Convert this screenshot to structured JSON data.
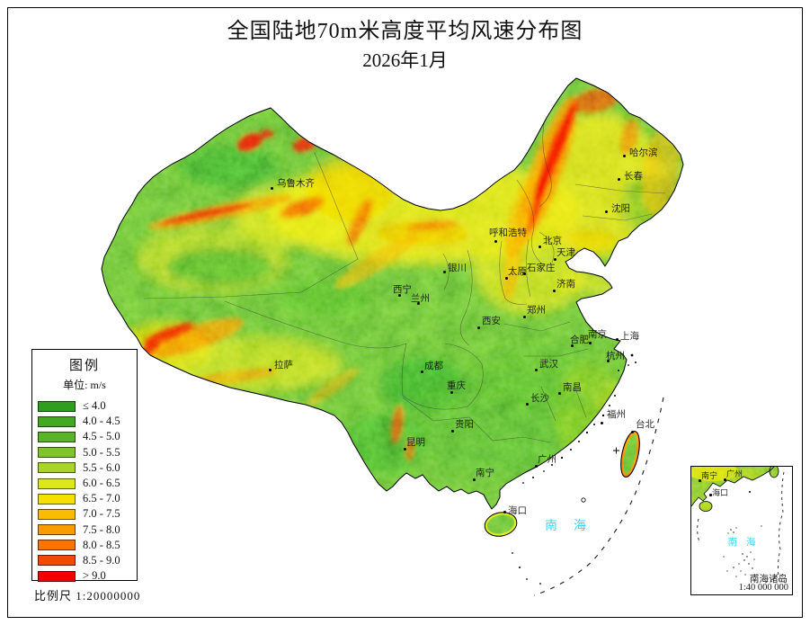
{
  "title": "全国陆地70m米高度平均风速分布图",
  "subtitle": "2026年1月",
  "scale_text": "比例尺  1:20000000",
  "colors": {
    "sea_label": "#3ed6f0",
    "land_base": "#58b428"
  },
  "legend": {
    "title": "图例",
    "unit_label": "单位: m/s",
    "items": [
      {
        "label": "≤ 4.0",
        "color": "#2f9e1e"
      },
      {
        "label": "4.0 - 4.5",
        "color": "#45a822"
      },
      {
        "label": "4.5 - 5.0",
        "color": "#5bb427"
      },
      {
        "label": "5.0 - 5.5",
        "color": "#80c42c"
      },
      {
        "label": "5.5 - 6.0",
        "color": "#aad428"
      },
      {
        "label": "6.0 - 6.5",
        "color": "#dce81a"
      },
      {
        "label": "6.5 - 7.0",
        "color": "#f6e000"
      },
      {
        "label": "7.0 - 7.5",
        "color": "#f9bc00"
      },
      {
        "label": "7.5 - 8.0",
        "color": "#f99c00"
      },
      {
        "label": "8.0 - 8.5",
        "color": "#f97400"
      },
      {
        "label": "8.5 - 9.0",
        "color": "#f54800"
      },
      {
        "label": "> 9.0",
        "color": "#f20000"
      }
    ]
  },
  "map": {
    "sea_label": "南海",
    "cities": [
      {
        "name": "哈尔滨",
        "dot": [
          694,
          173
        ],
        "label": [
          700,
          165
        ]
      },
      {
        "name": "长春",
        "dot": [
          688,
          199
        ],
        "label": [
          694,
          191
        ]
      },
      {
        "name": "沈阳",
        "dot": [
          674,
          235
        ],
        "label": [
          680,
          227
        ]
      },
      {
        "name": "乌鲁木齐",
        "dot": [
          302,
          209
        ],
        "label": [
          308,
          199
        ]
      },
      {
        "name": "呼和浩特",
        "dot": [
          551,
          268
        ],
        "label": [
          544,
          254
        ]
      },
      {
        "name": "北京",
        "dot": [
          600,
          274
        ],
        "label": [
          604,
          263
        ]
      },
      {
        "name": "天津",
        "dot": [
          617,
          288
        ],
        "label": [
          619,
          276
        ]
      },
      {
        "name": "银川",
        "dot": [
          494,
          302
        ],
        "label": [
          498,
          293
        ]
      },
      {
        "name": "太原",
        "dot": [
          563,
          309
        ],
        "label": [
          565,
          297
        ]
      },
      {
        "name": "石家庄",
        "dot": [
          583,
          304
        ],
        "label": [
          586,
          293
        ]
      },
      {
        "name": "济南",
        "dot": [
          616,
          323
        ],
        "label": [
          619,
          311
        ]
      },
      {
        "name": "郑州",
        "dot": [
          583,
          352
        ],
        "label": [
          586,
          340
        ]
      },
      {
        "name": "西宁",
        "dot": [
          444,
          328
        ],
        "label": [
          437,
          317
        ]
      },
      {
        "name": "兰州",
        "dot": [
          465,
          337
        ],
        "label": [
          457,
          327
        ]
      },
      {
        "name": "西安",
        "dot": [
          532,
          364
        ],
        "label": [
          536,
          352
        ]
      },
      {
        "name": "拉萨",
        "dot": [
          300,
          411
        ],
        "label": [
          305,
          401
        ]
      },
      {
        "name": "成都",
        "dot": [
          469,
          413
        ],
        "label": [
          472,
          402
        ]
      },
      {
        "name": "重庆",
        "dot": [
          502,
          436
        ],
        "label": [
          497,
          424
        ]
      },
      {
        "name": "武汉",
        "dot": [
          596,
          411
        ],
        "label": [
          600,
          400
        ]
      },
      {
        "name": "长沙",
        "dot": [
          586,
          449
        ],
        "label": [
          590,
          438
        ]
      },
      {
        "name": "南昌",
        "dot": [
          622,
          437
        ],
        "label": [
          626,
          426
        ]
      },
      {
        "name": "贵阳",
        "dot": [
          503,
          479
        ],
        "label": [
          506,
          467
        ]
      },
      {
        "name": "昆明",
        "dot": [
          450,
          499
        ],
        "label": [
          452,
          487
        ]
      },
      {
        "name": "南京",
        "dot": [
          656,
          381
        ],
        "label": [
          654,
          367
        ]
      },
      {
        "name": "合肥",
        "dot": [
          636,
          384
        ],
        "label": [
          634,
          373
        ]
      },
      {
        "name": "上海",
        "dot": [
          686,
          377
        ],
        "label": [
          690,
          369
        ]
      },
      {
        "name": "杭州",
        "dot": [
          676,
          401
        ],
        "label": [
          674,
          391
        ]
      },
      {
        "name": "福州",
        "dot": [
          669,
          470
        ],
        "label": [
          675,
          456
        ]
      },
      {
        "name": "台北",
        "dot": [
          703,
          480
        ],
        "label": [
          707,
          467
        ]
      },
      {
        "name": "广州",
        "dot": [
          596,
          518
        ],
        "label": [
          598,
          506
        ]
      },
      {
        "name": "南宁",
        "dot": [
          527,
          533
        ],
        "label": [
          529,
          521
        ]
      },
      {
        "name": "海口",
        "dot": [
          561,
          569
        ],
        "label": [
          565,
          563
        ]
      }
    ]
  },
  "inset": {
    "sea_label": "南海",
    "islands_label": "南海诸岛",
    "scale_text": "1:40 000 000",
    "cities": [
      {
        "name": "南宁",
        "dot": [
          8,
          14
        ],
        "label": [
          11,
          6
        ]
      },
      {
        "name": "广州",
        "dot": [
          36,
          13
        ],
        "label": [
          39,
          4
        ]
      },
      {
        "name": "海口",
        "dot": [
          20,
          30
        ],
        "label": [
          23,
          25
        ]
      }
    ]
  }
}
